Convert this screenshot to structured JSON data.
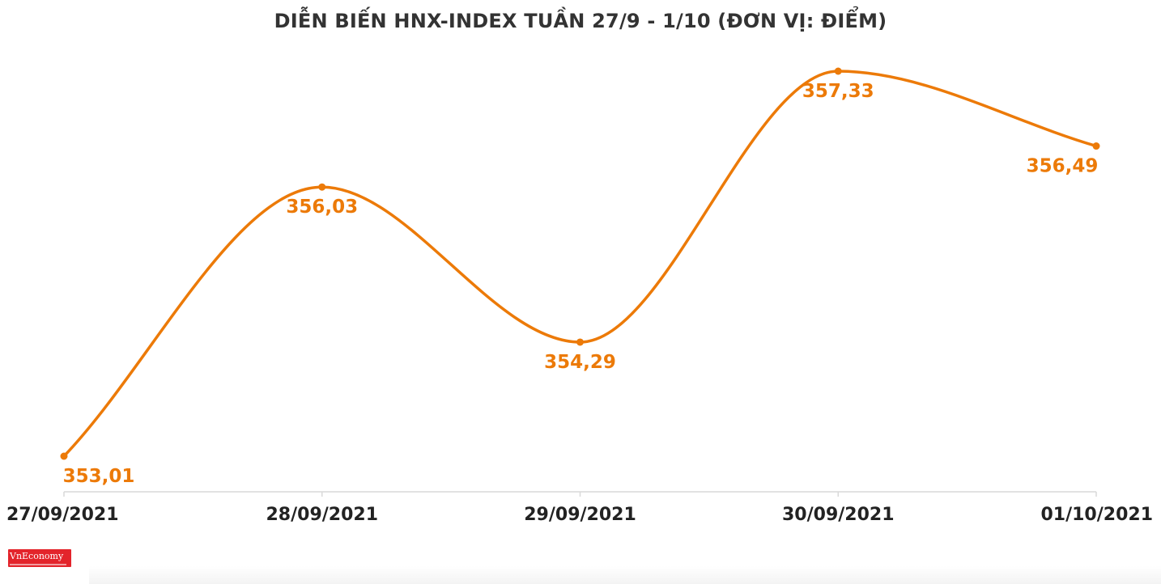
{
  "chart_data": {
    "type": "line",
    "title": "DIỄN BIẾN HNX-INDEX TUẦN 27/9 - 1/10 (ĐƠN VỊ: ĐIỂM)",
    "categories": [
      "27/09/2021",
      "28/09/2021",
      "29/09/2021",
      "30/09/2021",
      "01/10/2021"
    ],
    "values": [
      353.01,
      356.03,
      354.29,
      357.33,
      356.49
    ],
    "value_labels": [
      "353,01",
      "356,03",
      "354,29",
      "357,33",
      "356,49"
    ],
    "smooth": true,
    "grid": false,
    "legend": "none",
    "colors": {
      "line": "#ec7a08",
      "label": "#ec7a08",
      "axis": "#d9d9d9",
      "tick_text": "#222222"
    }
  },
  "branding": {
    "logo_text": "VnEconomy"
  }
}
